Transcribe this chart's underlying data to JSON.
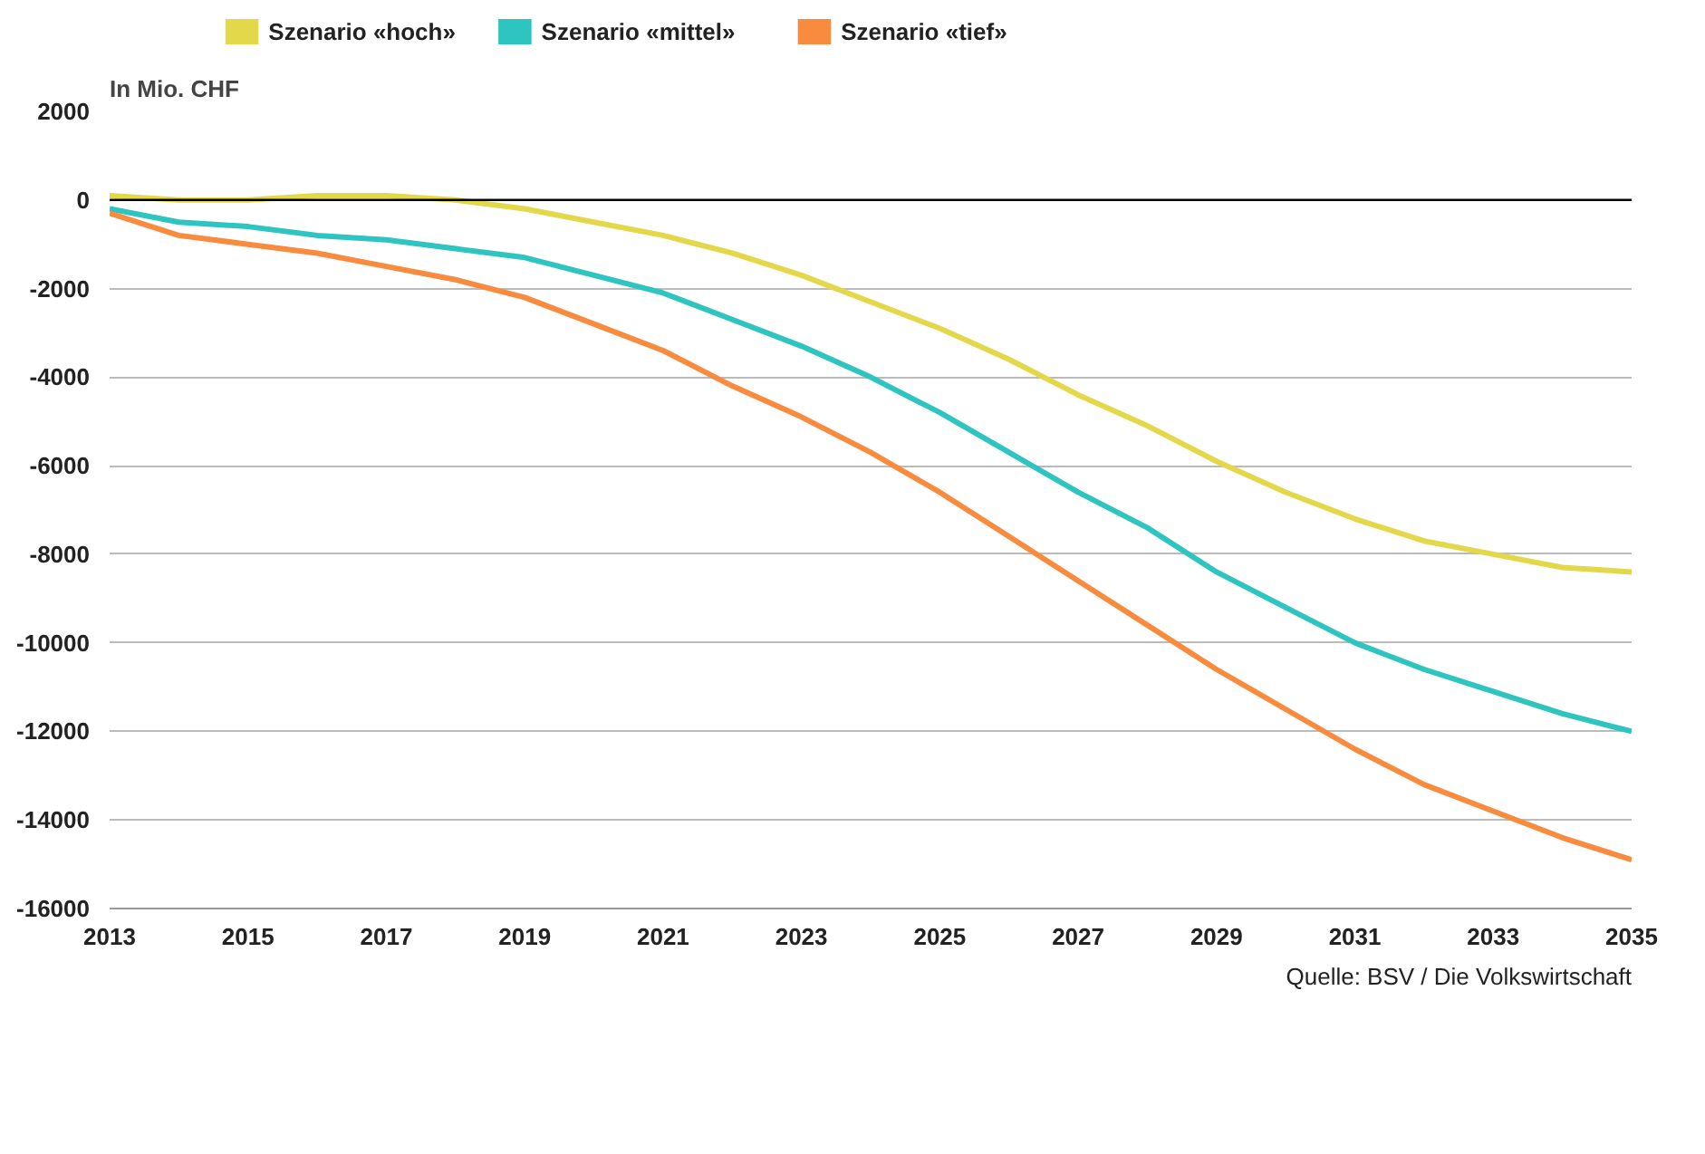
{
  "chart_data": {
    "type": "line",
    "ylabel": "In Mio. CHF",
    "x": [
      2013,
      2014,
      2015,
      2016,
      2017,
      2018,
      2019,
      2020,
      2021,
      2022,
      2023,
      2024,
      2025,
      2026,
      2027,
      2028,
      2029,
      2030,
      2031,
      2032,
      2033,
      2034,
      2035
    ],
    "series": [
      {
        "name": "Szenario «hoch»",
        "color": "#e3d84a",
        "values": [
          100,
          0,
          0,
          100,
          100,
          0,
          -200,
          -500,
          -800,
          -1200,
          -1700,
          -2300,
          -2900,
          -3600,
          -4400,
          -5100,
          -5900,
          -6600,
          -7200,
          -7700,
          -8000,
          -8300,
          -8400
        ]
      },
      {
        "name": "Szenario «mittel»",
        "color": "#2ec4c0",
        "values": [
          -200,
          -500,
          -600,
          -800,
          -900,
          -1100,
          -1300,
          -1700,
          -2100,
          -2700,
          -3300,
          -4000,
          -4800,
          -5700,
          -6600,
          -7400,
          -8400,
          -9200,
          -10000,
          -10600,
          -11100,
          -11600,
          -12000
        ]
      },
      {
        "name": "Szenario «tief»",
        "color": "#f98b3f",
        "values": [
          -300,
          -800,
          -1000,
          -1200,
          -1500,
          -1800,
          -2200,
          -2800,
          -3400,
          -4200,
          -4900,
          -5700,
          -6600,
          -7600,
          -8600,
          -9600,
          -10600,
          -11500,
          -12400,
          -13200,
          -13800,
          -14400,
          -14900
        ]
      }
    ],
    "xlim": [
      2013,
      2035
    ],
    "xticks": [
      2013,
      2015,
      2017,
      2019,
      2021,
      2023,
      2025,
      2027,
      2029,
      2031,
      2033,
      2035
    ],
    "ylim": [
      -16000,
      2000
    ],
    "yticks": [
      2000,
      0,
      -2000,
      -4000,
      -6000,
      -8000,
      -10000,
      -12000,
      -14000,
      -16000
    ],
    "grid": "y",
    "legend": "top left",
    "ref_lines": [
      {
        "axis": "y",
        "value": 0,
        "color": "#000000"
      }
    ],
    "annotations": [
      "Quelle: BSV / Die Volkswirtschaft"
    ]
  }
}
